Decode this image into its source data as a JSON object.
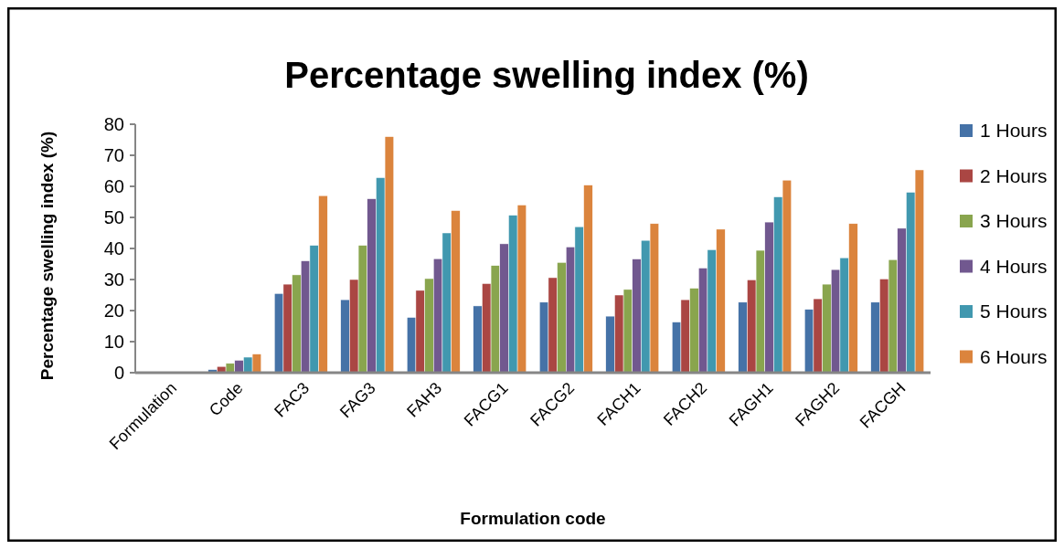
{
  "chart_data": {
    "type": "bar",
    "title": "Percentage swelling index (%)",
    "xlabel": "Formulation code",
    "ylabel": "Percentage swelling index (%)",
    "categories": [
      "Formulation",
      "Code",
      "FAC3",
      "FAG3",
      "FAH3",
      "FACG1",
      "FACG2",
      "FACH1",
      "FACH2",
      "FAGH1",
      "FAGH2",
      "FACGH"
    ],
    "series": [
      {
        "name": "1 Hours",
        "color": "#4572a7",
        "values": [
          null,
          1,
          25.5,
          23.5,
          17.8,
          21.5,
          22.7,
          18.2,
          16.3,
          22.7,
          20.4,
          22.7
        ]
      },
      {
        "name": "2 Hours",
        "color": "#aa4643",
        "values": [
          null,
          2,
          28.5,
          30,
          26.5,
          28.7,
          30.6,
          25,
          23.5,
          29.9,
          23.8,
          30.2
        ]
      },
      {
        "name": "3 Hours",
        "color": "#89a54e",
        "values": [
          null,
          3,
          31.5,
          41,
          30.3,
          34.5,
          35.5,
          26.8,
          27.2,
          39.4,
          28.5,
          36.4
        ]
      },
      {
        "name": "4 Hours",
        "color": "#71588f",
        "values": [
          null,
          4,
          36,
          56,
          36.7,
          41.5,
          40.5,
          36.6,
          33.7,
          48.5,
          33.2,
          46.5
        ]
      },
      {
        "name": "5 Hours",
        "color": "#4198af",
        "values": [
          null,
          5,
          41,
          62.8,
          45,
          50.7,
          47,
          42.6,
          39.6,
          56.6,
          37,
          58.1
        ]
      },
      {
        "name": "6 Hours",
        "color": "#db843d",
        "values": [
          null,
          6,
          57,
          76,
          52.2,
          54,
          60.4,
          48,
          46.2,
          62,
          48,
          65.3
        ]
      }
    ],
    "ylim": [
      0,
      80
    ],
    "yticks": [
      0,
      10,
      20,
      30,
      40,
      50,
      60,
      70,
      80
    ],
    "grid": false,
    "legend": "right"
  }
}
